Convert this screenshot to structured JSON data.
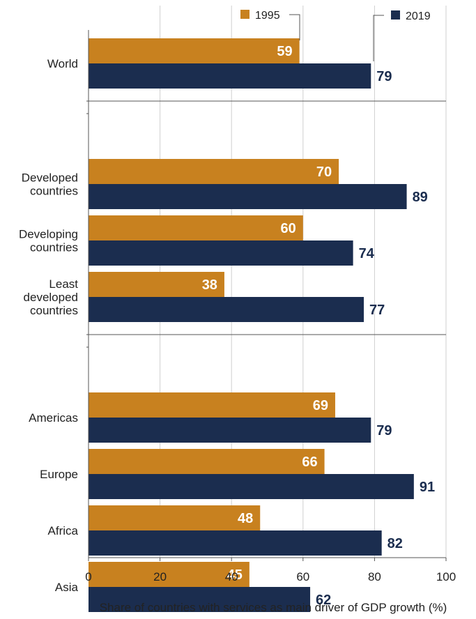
{
  "chart_data": {
    "type": "bar",
    "orientation": "horizontal",
    "xlabel": "Share of countries with services as main driver of GDP growth (%)",
    "xlim": [
      0,
      100
    ],
    "xticks": [
      0,
      20,
      40,
      60,
      80,
      100
    ],
    "grid": true,
    "legend_position": "top",
    "series": [
      {
        "name": "1995",
        "color": "#C8811F"
      },
      {
        "name": "2019",
        "color": "#1B2D4F"
      }
    ],
    "groups": [
      {
        "categories": [
          {
            "label": [
              "World"
            ],
            "values": [
              59,
              79
            ]
          }
        ]
      },
      {
        "categories": [
          {
            "label": [
              "Developed",
              "countries"
            ],
            "values": [
              70,
              89
            ]
          },
          {
            "label": [
              "Developing",
              "countries"
            ],
            "values": [
              60,
              74
            ]
          },
          {
            "label": [
              "Least",
              "developed",
              "countries"
            ],
            "values": [
              38,
              77
            ]
          }
        ]
      },
      {
        "categories": [
          {
            "label": [
              "Americas"
            ],
            "values": [
              69,
              79
            ]
          },
          {
            "label": [
              "Europe"
            ],
            "values": [
              66,
              91
            ]
          },
          {
            "label": [
              "Africa"
            ],
            "values": [
              48,
              82
            ]
          },
          {
            "label": [
              "Asia"
            ],
            "values": [
              45,
              62
            ]
          }
        ]
      }
    ]
  }
}
